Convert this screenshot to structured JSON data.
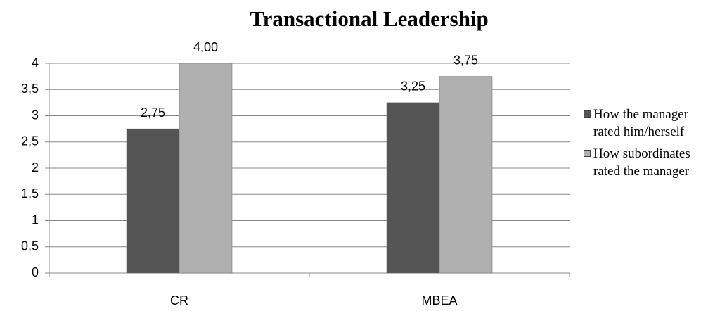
{
  "chart_data": {
    "type": "bar",
    "title": "Transactional Leadership",
    "categories": [
      "CR",
      "MBEA"
    ],
    "series": [
      {
        "name": "How the manager rated him/herself",
        "color": "#555555",
        "values": [
          2.75,
          3.25
        ],
        "value_labels": [
          "2,75",
          "3,25"
        ]
      },
      {
        "name": "How subordinates rated the manager",
        "color": "#b0b0b0",
        "values": [
          4.0,
          3.75
        ],
        "value_labels": [
          "4,00",
          "3,75"
        ]
      }
    ],
    "ylim": [
      0,
      4
    ],
    "yticks": [
      0,
      {
        "value": 0.5,
        "label": "0,5"
      },
      1,
      {
        "value": 1.5,
        "label": "1,5"
      },
      2,
      {
        "value": 2.5,
        "label": "2,5"
      },
      3,
      {
        "value": 3.5,
        "label": "3,5"
      },
      4
    ],
    "grid": true,
    "legend": "right"
  }
}
